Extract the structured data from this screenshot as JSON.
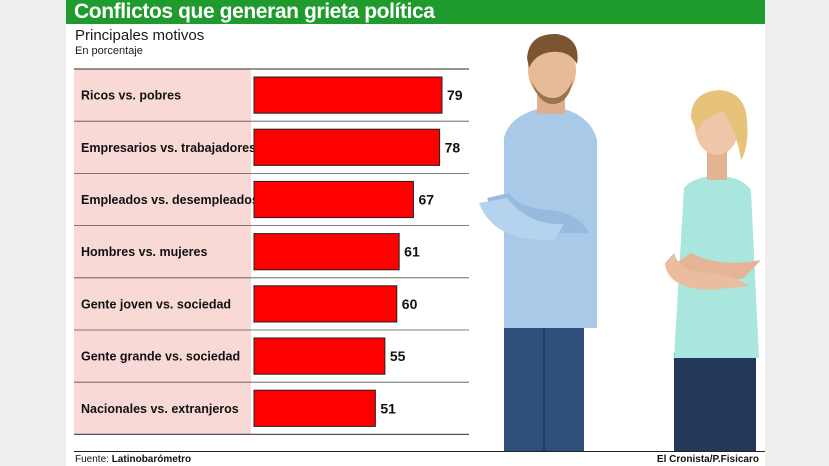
{
  "header": {
    "title": "Conflictos que generan grieta política",
    "subtitle": "Principales motivos",
    "unit_note": "En porcentaje"
  },
  "footer": {
    "source_label": "Fuente:",
    "source_name": "Latinobarómetro",
    "credit": "El Cronista/P.Fisicaro"
  },
  "photo": {
    "description_icon": "couple-photo-icon"
  },
  "colors": {
    "title_bar": "#1f9a2c",
    "bar_fill": "#ff0000",
    "label_bg": "#f9d9d6"
  },
  "chart_data": {
    "type": "bar",
    "orientation": "horizontal",
    "title": "Principales motivos",
    "categories": [
      "Ricos vs. pobres",
      "Empresarios vs. trabajadores",
      "Empleados vs. desempleados",
      "Hombres vs. mujeres",
      "Gente joven vs. sociedad",
      "Gente grande vs. sociedad",
      "Nacionales vs. extranjeros"
    ],
    "values": [
      79,
      78,
      67,
      61,
      60,
      55,
      51
    ],
    "value_labels": [
      "79",
      "78",
      "67",
      "61",
      "60",
      "55",
      "51"
    ],
    "xlabel": "",
    "ylabel": "",
    "grid": false,
    "legend": "none"
  }
}
